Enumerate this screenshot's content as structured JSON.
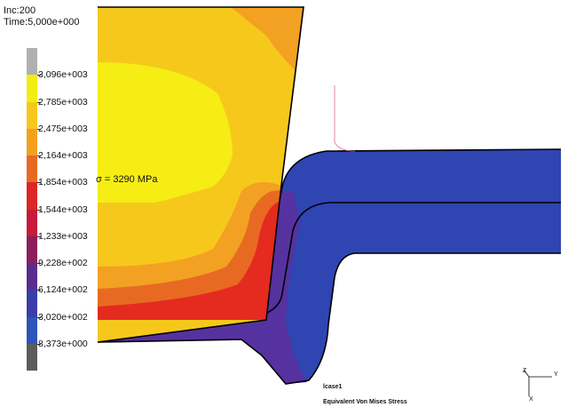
{
  "header": {
    "increment": "Inc:200",
    "time": "Time:5,000e+000"
  },
  "legend": {
    "ticks": [
      "3,096e+003",
      "2,785e+003",
      "2,475e+003",
      "2,164e+003",
      "1,854e+003",
      "1,544e+003",
      "1,233e+003",
      "9,228e+002",
      "6,124e+002",
      "3,020e+002",
      "8,373e+000"
    ],
    "colors": [
      "#b0b0b0",
      "#f2ed12",
      "#f6c81c",
      "#f4a01e",
      "#e86a22",
      "#dd2626",
      "#c81a3a",
      "#8c1e5c",
      "#5a2d8c",
      "#3a3ea6",
      "#2b55b8",
      "#5c5c5c"
    ]
  },
  "annotation": "σ = 3290 MPa",
  "footer": {
    "case": "lcase1",
    "quantity": "Equivalent Von Mises Stress"
  },
  "axes": {
    "z": "Z",
    "y": "Y",
    "x": "X"
  },
  "palette": {
    "die_yellow": "#f5ed14",
    "die_orange": "#f2a122",
    "die_red": "#e52a20",
    "workpiece_blue": "#2f45b2",
    "workpiece_purple": "#5632a0",
    "outline": "#000000"
  }
}
